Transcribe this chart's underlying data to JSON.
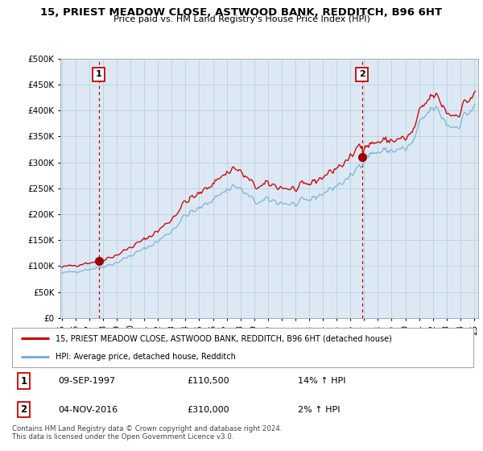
{
  "title": "15, PRIEST MEADOW CLOSE, ASTWOOD BANK, REDDITCH, B96 6HT",
  "subtitle": "Price paid vs. HM Land Registry's House Price Index (HPI)",
  "legend_line1": "15, PRIEST MEADOW CLOSE, ASTWOOD BANK, REDDITCH, B96 6HT (detached house)",
  "legend_line2": "HPI: Average price, detached house, Redditch",
  "annotation1_date": "09-SEP-1997",
  "annotation1_price": "£110,500",
  "annotation1_hpi": "14% ↑ HPI",
  "annotation2_date": "04-NOV-2016",
  "annotation2_price": "£310,000",
  "annotation2_hpi": "2% ↑ HPI",
  "footer": "Contains HM Land Registry data © Crown copyright and database right 2024.\nThis data is licensed under the Open Government Licence v3.0.",
  "sale1_year": 1997.69,
  "sale1_price": 110500,
  "sale2_year": 2016.84,
  "sale2_price": 310000,
  "price_line_color": "#cc0000",
  "hpi_line_color": "#7ab0d4",
  "sale_dot_color": "#990000",
  "vline_color": "#cc0000",
  "ylim": [
    0,
    500000
  ],
  "xlim_start": 1994.9,
  "xlim_end": 2025.3,
  "plot_bg_color": "#dce9f5",
  "background_color": "#ffffff",
  "grid_color": "#b8cfe0"
}
